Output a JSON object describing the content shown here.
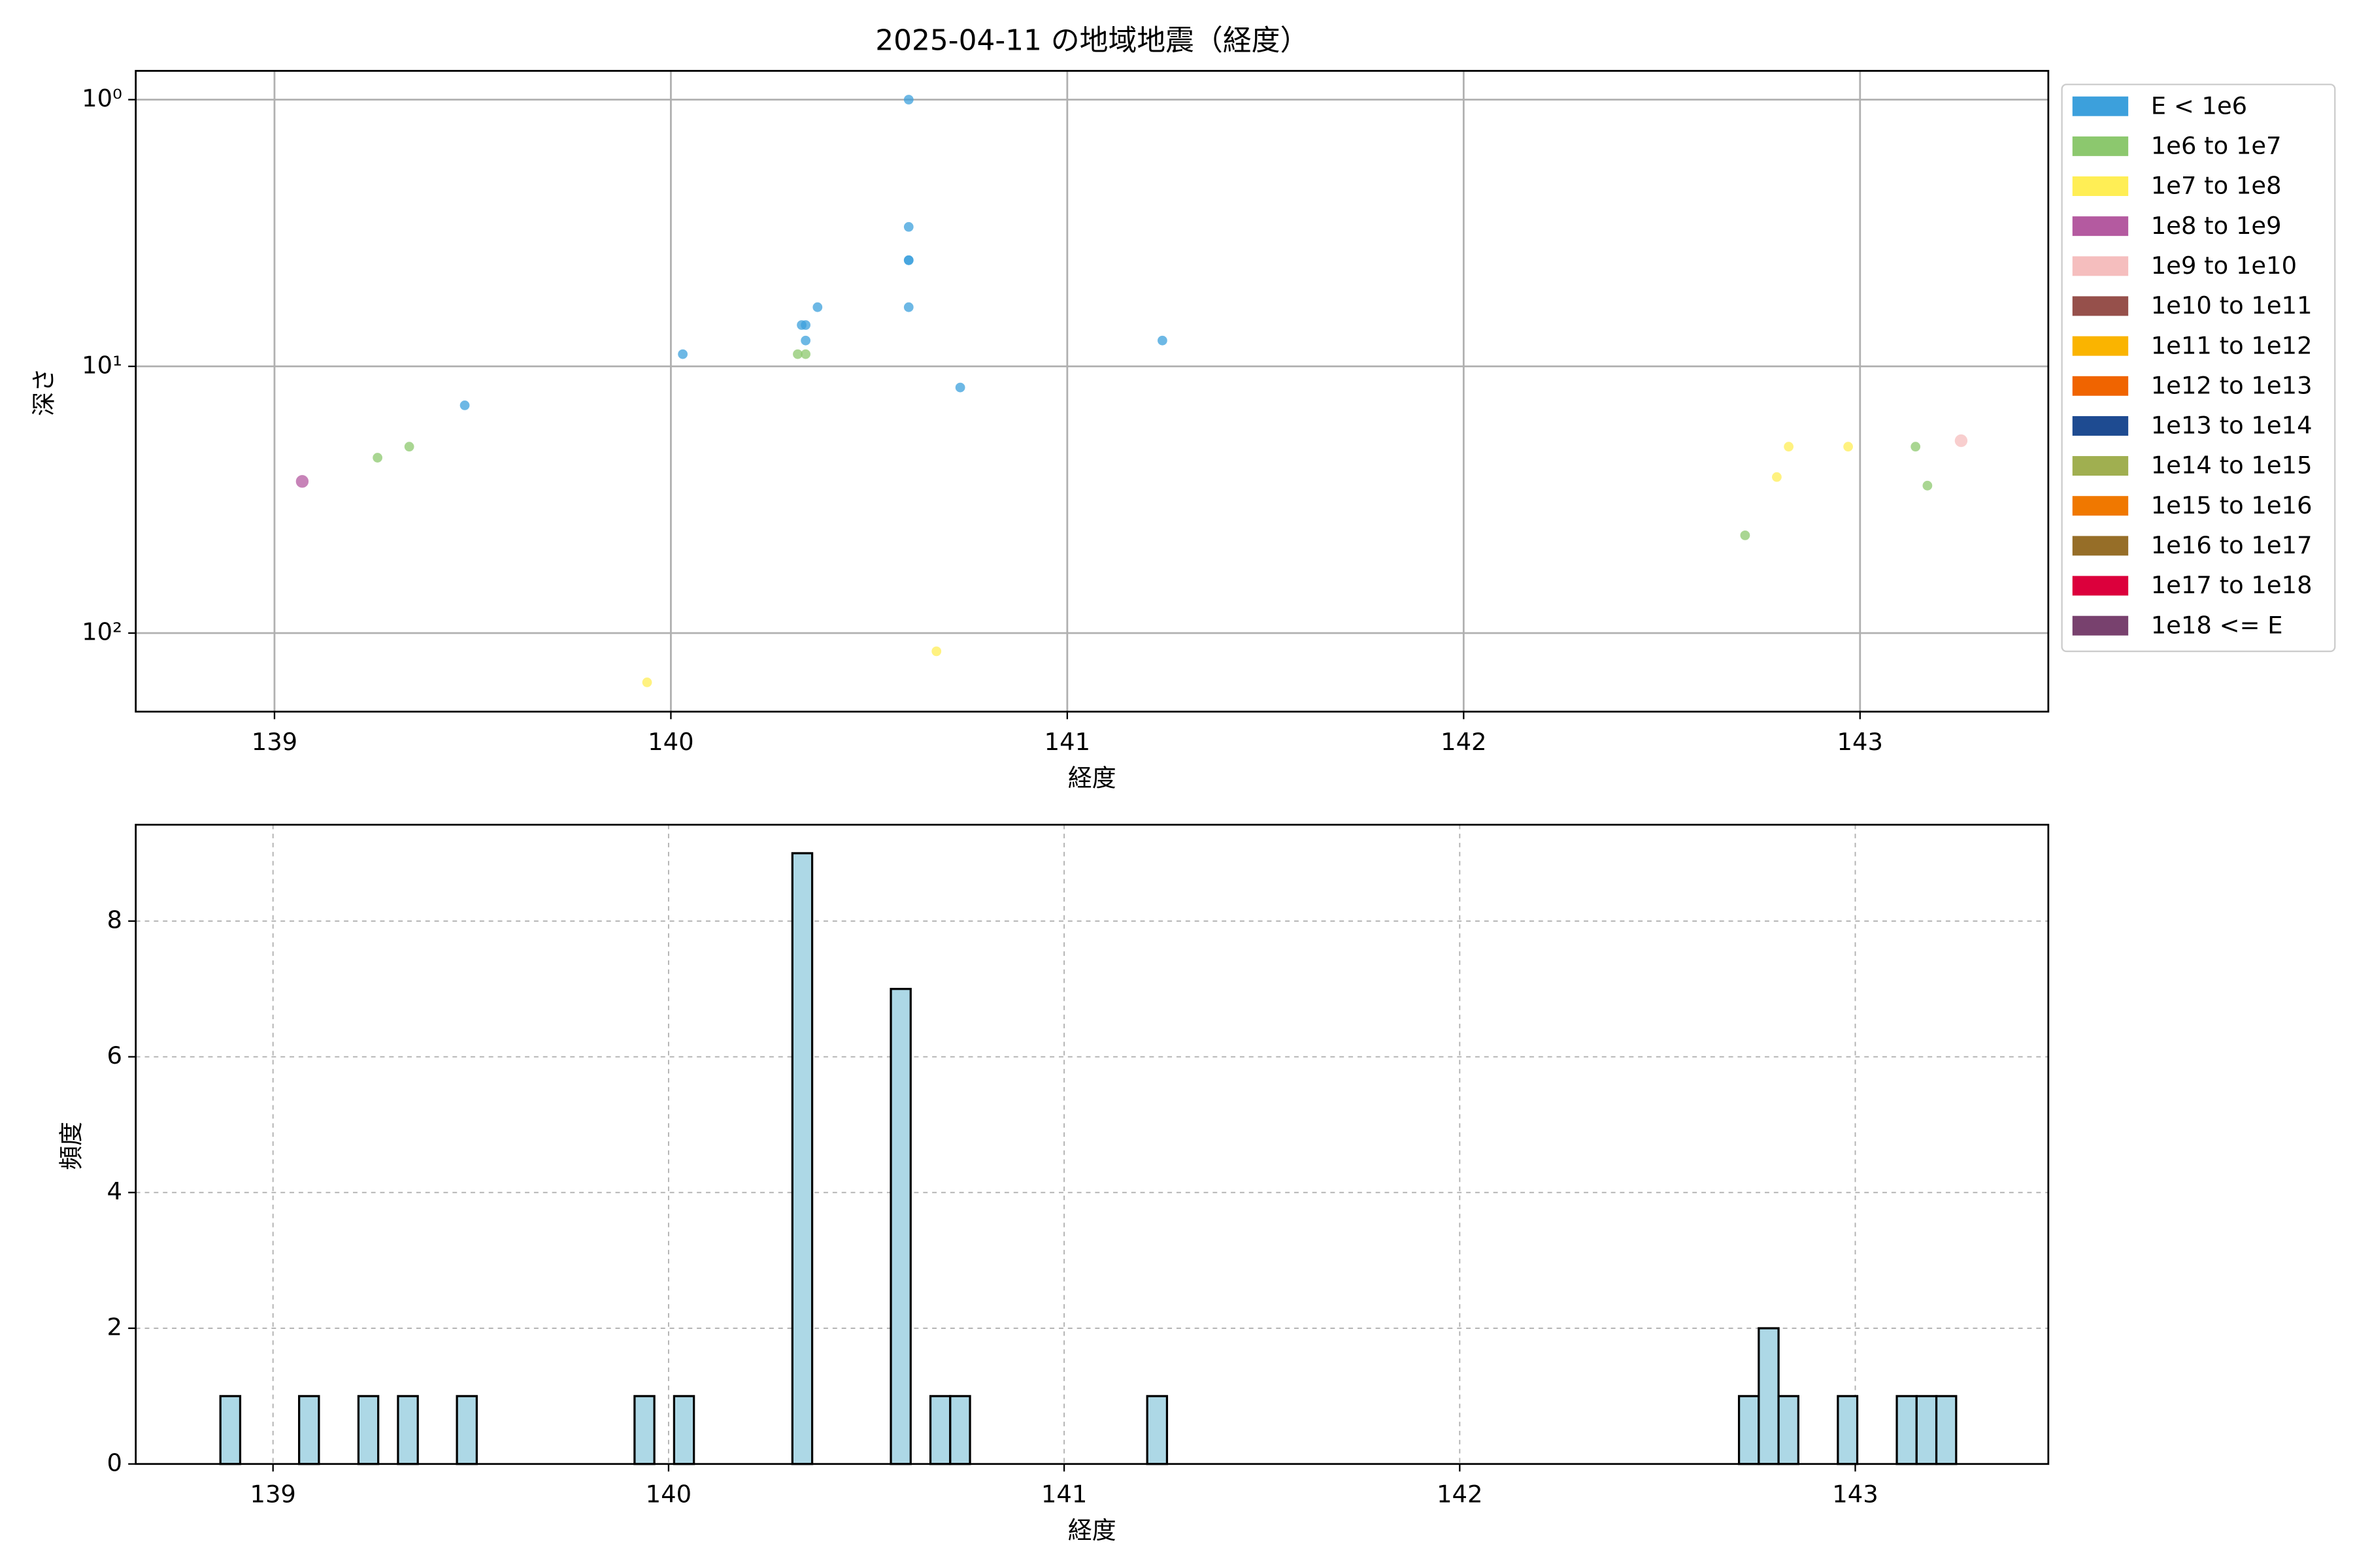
{
  "chart_data": [
    {
      "type": "scatter",
      "title": "2025-04-11 の地域地震（経度）",
      "x_label": "経度",
      "y_label": "深さ",
      "xlim": [
        138.65,
        143.475
      ],
      "xticks": [
        139,
        140,
        141,
        142,
        143
      ],
      "ylim": [
        0.78,
        197
      ],
      "y_log": true,
      "y_inverted": true,
      "yticks": [
        {
          "value": 1,
          "label": "10⁰"
        },
        {
          "value": 10,
          "label": "10¹"
        },
        {
          "value": 100,
          "label": "10²"
        }
      ],
      "grid": true,
      "grid_style": "solid",
      "legend_loc": "outside upper right",
      "series": [
        {
          "name": "E < 1e6",
          "color": "#3ca0dc",
          "x": [
            140.6,
            140.6,
            140.6,
            140.6,
            140.6,
            140.37,
            140.33,
            140.34,
            140.34,
            140.03,
            141.24,
            140.73,
            139.48
          ],
          "y": [
            1,
            3,
            4,
            4,
            6,
            6,
            7,
            7,
            8,
            9,
            8,
            12,
            14
          ]
        },
        {
          "name": "1e6 to 1e7",
          "color": "#8cc86e",
          "x": [
            140.32,
            140.34,
            139.26,
            139.34,
            142.71,
            143.14,
            143.17
          ],
          "y": [
            9,
            9,
            22,
            20,
            43,
            20,
            28
          ]
        },
        {
          "name": "1e7 to 1e8",
          "color": "#ffee55",
          "x": [
            139.94,
            140.67,
            142.79,
            142.82,
            142.97
          ],
          "y": [
            153,
            117,
            26,
            20,
            20
          ]
        },
        {
          "name": "1e8 to 1e9",
          "color": "#b45aa0",
          "x": [
            139.07
          ],
          "y": [
            27
          ]
        },
        {
          "name": "1e9 to 1e10",
          "color": "#f5bebe",
          "x": [
            143.255
          ],
          "y": [
            19
          ]
        },
        {
          "name": "1e10 to 1e11",
          "color": "#96504b",
          "x": [],
          "y": []
        },
        {
          "name": "1e11 to 1e12",
          "color": "#fab400",
          "x": [],
          "y": []
        },
        {
          "name": "1e12 to 1e13",
          "color": "#f06400",
          "x": [],
          "y": []
        },
        {
          "name": "1e13 to 1e14",
          "color": "#1e4b91",
          "x": [],
          "y": []
        },
        {
          "name": "1e14 to 1e15",
          "color": "#a0af50",
          "x": [],
          "y": []
        },
        {
          "name": "1e15 to 1e16",
          "color": "#f07800",
          "x": [],
          "y": []
        },
        {
          "name": "1e16 to 1e17",
          "color": "#966e28",
          "x": [],
          "y": []
        },
        {
          "name": "1e17 to 1e18",
          "color": "#dc003c",
          "x": [],
          "y": []
        },
        {
          "name": "1e18 <= E",
          "color": "#78416e",
          "x": [],
          "y": []
        }
      ]
    },
    {
      "type": "histogram",
      "x_label": "経度",
      "y_label": "頻度",
      "xlim": [
        138.653,
        143.488
      ],
      "xticks": [
        139,
        140,
        141,
        142,
        143
      ],
      "ylim": [
        0,
        9.42
      ],
      "yticks": [
        0,
        2,
        4,
        6,
        8
      ],
      "grid": true,
      "grid_style": "dashed",
      "color": "#add8e6",
      "edgecolor": "#000000",
      "bins": [
        138.867,
        138.917,
        138.967,
        139.017,
        139.066,
        139.116,
        139.166,
        139.216,
        139.266,
        139.316,
        139.366,
        139.415,
        139.465,
        139.515,
        139.565,
        139.615,
        139.665,
        139.715,
        139.764,
        139.814,
        139.864,
        139.914,
        139.964,
        140.014,
        140.064,
        140.114,
        140.163,
        140.213,
        140.263,
        140.313,
        140.363,
        140.413,
        140.463,
        140.512,
        140.562,
        140.612,
        140.662,
        140.712,
        140.762,
        140.812,
        140.861,
        140.911,
        140.961,
        141.011,
        141.061,
        141.111,
        141.161,
        141.21,
        141.26,
        141.31,
        141.36,
        141.41,
        141.46,
        141.51,
        141.559,
        141.609,
        141.659,
        141.709,
        141.759,
        141.809,
        141.859,
        141.908,
        141.958,
        142.008,
        142.058,
        142.108,
        142.158,
        142.208,
        142.257,
        142.307,
        142.357,
        142.407,
        142.457,
        142.507,
        142.557,
        142.607,
        142.656,
        142.706,
        142.756,
        142.806,
        142.856,
        142.906,
        142.956,
        143.005,
        143.055,
        143.105,
        143.155,
        143.205,
        143.255
      ],
      "values": [
        1,
        0,
        0,
        0,
        1,
        0,
        0,
        1,
        0,
        1,
        0,
        0,
        1,
        0,
        0,
        0,
        0,
        0,
        0,
        0,
        0,
        1,
        0,
        1,
        0,
        0,
        0,
        0,
        0,
        9,
        0,
        0,
        0,
        0,
        7,
        0,
        1,
        1,
        0,
        0,
        0,
        0,
        0,
        0,
        0,
        0,
        0,
        1,
        0,
        0,
        0,
        0,
        0,
        0,
        0,
        0,
        0,
        0,
        0,
        0,
        0,
        0,
        0,
        0,
        0,
        0,
        0,
        0,
        0,
        0,
        0,
        0,
        0,
        0,
        0,
        0,
        0,
        1,
        2,
        1,
        0,
        0,
        1,
        0,
        0,
        1,
        1,
        1
      ]
    }
  ]
}
